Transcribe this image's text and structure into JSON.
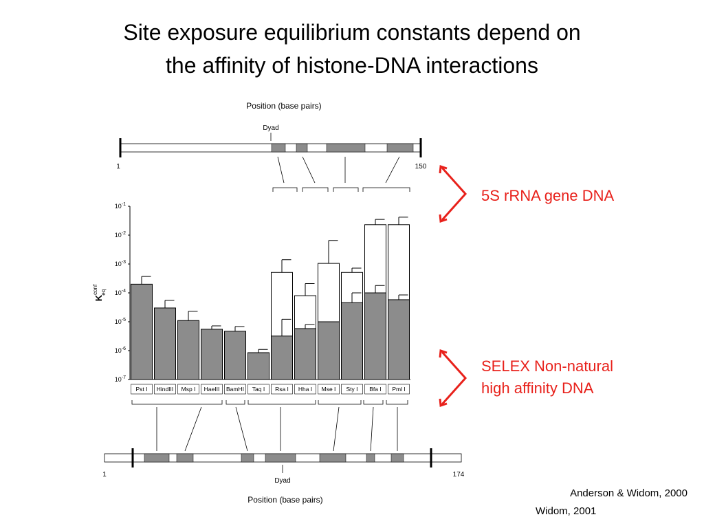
{
  "chart_data": {
    "type": "bar",
    "title": [
      "Site exposure equilibrium constants depend on",
      "the affinity of histone-DNA interactions"
    ],
    "ylabel": {
      "main": "K",
      "sub": "eq",
      "sup": "conf"
    },
    "log_y": true,
    "ylim": [
      1e-07,
      0.1
    ],
    "yticks": [
      {
        "value": 1e-07,
        "label": "10",
        "exponent": "-7"
      },
      {
        "value": 1e-06,
        "label": "10",
        "exponent": "-6"
      },
      {
        "value": 1e-05,
        "label": "10",
        "exponent": "-5"
      },
      {
        "value": 0.0001,
        "label": "10",
        "exponent": "-4"
      },
      {
        "value": 0.001,
        "label": "10",
        "exponent": "-3"
      },
      {
        "value": 0.01,
        "label": "10",
        "exponent": "-2"
      },
      {
        "value": 0.1,
        "label": "10",
        "exponent": "-1"
      }
    ],
    "categories": [
      "Pst I",
      "HindIII",
      "Msp I",
      "HaeIII",
      "BamHI",
      "Taq I",
      "Rsa I",
      "Hha I",
      "Mse I",
      "Sty I",
      "Bfa I",
      "Pml I"
    ],
    "series": [
      {
        "color": "#ffffff",
        "values": [
          null,
          null,
          null,
          null,
          null,
          null,
          0.00051,
          8e-05,
          0.00105,
          0.00051,
          0.023,
          0.023
        ],
        "errors": [
          null,
          null,
          null,
          null,
          null,
          null,
          0.0009,
          0.00013,
          0.0055,
          0.00021,
          0.012,
          0.019
        ]
      },
      {
        "color": "#8c8c8c",
        "values": [
          0.0002,
          3e-05,
          1.1e-05,
          5.5e-06,
          4.7e-06,
          8.5e-07,
          3.2e-06,
          5.8e-06,
          1e-05,
          4.6e-05,
          0.0001,
          5.8e-05
        ],
        "errors": [
          0.00017,
          2.5e-05,
          1.2e-05,
          1.7e-06,
          2.1e-06,
          2.5e-07,
          9e-06,
          2.2e-06,
          null,
          5.4e-05,
          8e-05,
          2.7e-05
        ]
      }
    ],
    "top_map": {
      "axis_label": "Position (base pairs)",
      "dyad": "Dyad",
      "start": "1",
      "end": "150"
    },
    "bottom_map": {
      "axis_label": "Position (base pairs)",
      "dyad": "Dyad",
      "start": "1",
      "end": "174"
    },
    "annotations": [
      {
        "lines": [
          "5S rRNA gene DNA"
        ],
        "color": "#e8211b"
      },
      {
        "lines": [
          "SELEX Non-natural",
          "high affinity DNA"
        ],
        "color": "#e8211b"
      }
    ],
    "citation": [
      "Anderson & Widom, 2000",
      "Widom, 2001"
    ]
  }
}
